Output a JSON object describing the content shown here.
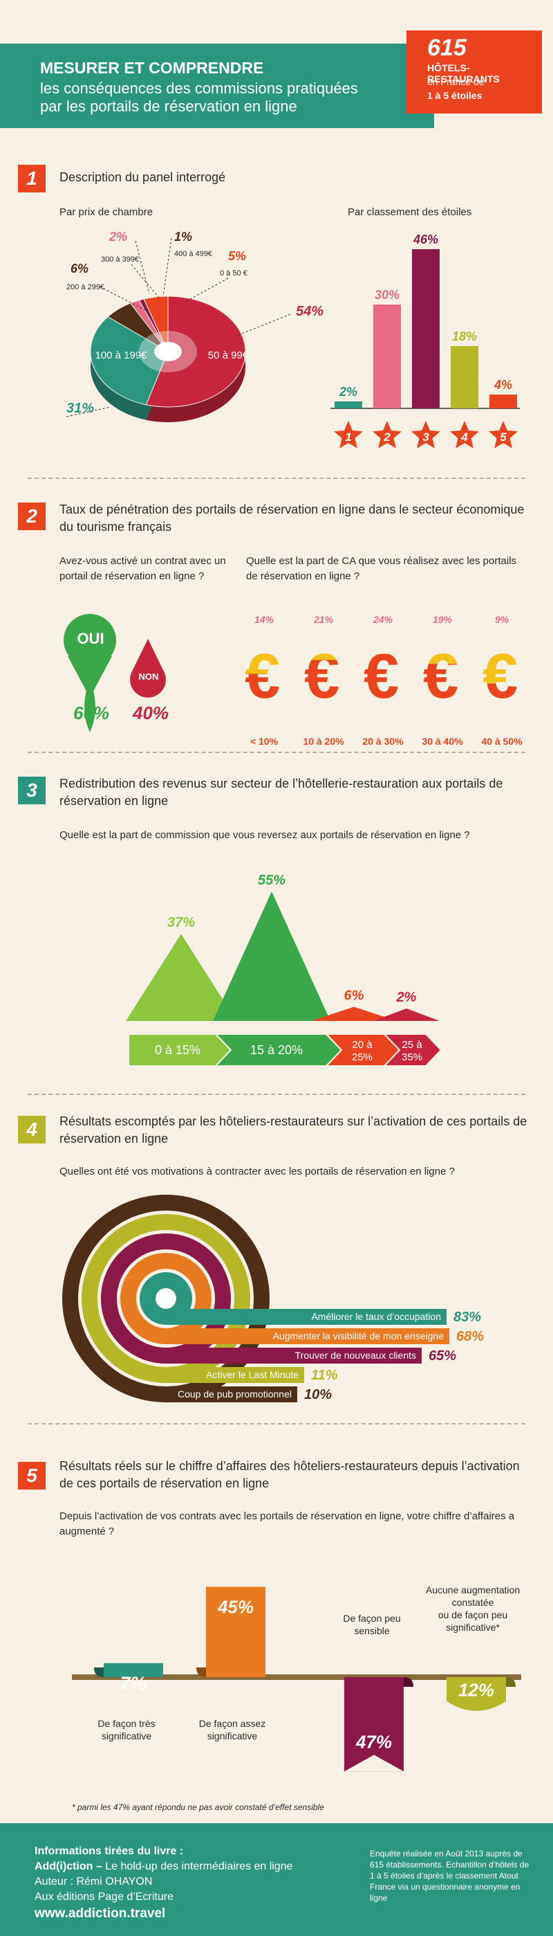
{
  "header": {
    "title": "MESURER ET COMPRENDRE",
    "subtitle_line1": "les conséquences des commissions pratiquées",
    "subtitle_line2": "par les portails de réservation en ligne"
  },
  "badge": {
    "number": "615",
    "line1": "HÔTELS-RESTAURANTS",
    "line2": "en France de",
    "line3": "1 à 5 étoiles"
  },
  "colors": {
    "teal": "#2b9680",
    "orange": "#e9441f",
    "red": "#c7253e",
    "pink": "#e86a86",
    "purple": "#8a1849",
    "olive": "#b7b629",
    "amber": "#e87a22",
    "green": "#3aa84a",
    "yellow": "#f3c11a",
    "brown": "#4f2e18"
  },
  "section1": {
    "num": "1",
    "title": "Description du panel interrogé",
    "pie_title": "Par prix de chambre",
    "bar_title": "Par classement des étoiles"
  },
  "section2": {
    "num": "2",
    "title": "Taux de pénétration des portails de réservation en ligne dans le secteur économique du tourisme français",
    "q_left": "Avez-vous activé un contrat avec un portail de réservation en ligne ?",
    "q_right": "Quelle est la part de CA que vous réalisez avec les portails de réservation en ligne ?",
    "oui": "OUI",
    "non": "NON",
    "oui_pct": "60%",
    "non_pct": "40%"
  },
  "section3": {
    "num": "3",
    "title": "Redistribution des revenus sur secteur de l’hôtellerie-restauration aux portails de réservation en ligne",
    "question": "Quelle est la part de commission que vous reversez aux portails de réservation en ligne ?"
  },
  "section4": {
    "num": "4",
    "title": "Résultats escomptés par les hôteliers-restaurateurs sur l’activation de ces portails de réservation en ligne",
    "question": "Quelles ont été vos motivations à contracter avec les portails de réservation en ligne ?"
  },
  "section5": {
    "num": "5",
    "title": "Résultats réels sur le chiffre d’affaires des hôteliers-restaurateurs depuis l’activation de ces portails de réservation en ligne",
    "question": "Depuis l’activation de vos contrats avec les portails de réservation en ligne, votre chiffre d’affaires a augmenté ?",
    "footnote": "* parmi les 47% ayant répondu ne pas avoir constaté d’effet sensible"
  },
  "footer": {
    "line1": "Informations tirées du livre :",
    "line2_bold": "Add(i)ction –",
    "line2_rest": " Le hold-up des intermédiaires en ligne",
    "line3": "Auteur : Rémi OHAYON",
    "line4": "Aux éditions Page d’Ecriture",
    "line5": "www.addiction.travel",
    "note": "Enquête réalisée en Août 2013 auprès de 615 établissements. Echantillon d’hôtels de 1 à 5 étoiles d’après le classement Atout France via un questionnaire anonyme en ligne"
  },
  "chart_data": [
    {
      "type": "pie",
      "title": "Par prix de chambre",
      "categories": [
        "50 à 99€",
        "100 à 199€",
        "200 à 299€",
        "300 à 399€",
        "400 à 499€",
        "0 à 50 €"
      ],
      "values": [
        54,
        31,
        6,
        2,
        1,
        5
      ],
      "labels": [
        "54%",
        "31%",
        "6%",
        "2%",
        "1%",
        "5%"
      ],
      "colors": [
        "#c7253e",
        "#2b9680",
        "#4f2e18",
        "#e86a86",
        "#8a1849",
        "#e9441f"
      ]
    },
    {
      "type": "bar",
      "title": "Par classement des étoiles",
      "categories": [
        "1",
        "2",
        "3",
        "4",
        "5"
      ],
      "values": [
        2,
        30,
        46,
        18,
        4
      ],
      "labels": [
        "2%",
        "30%",
        "46%",
        "18%",
        "4%"
      ],
      "colors": [
        "#2b9680",
        "#e86a86",
        "#8a1849",
        "#b7b629",
        "#e9441f"
      ]
    },
    {
      "type": "bar",
      "title": "Quelle est la part de CA que vous réalisez avec les portails de réservation en ligne ?",
      "categories": [
        "< 10%",
        "10 à 20%",
        "20 à 30%",
        "30 à 40%",
        "40 à 50%"
      ],
      "values": [
        14,
        21,
        24,
        19,
        9
      ],
      "labels": [
        "14%",
        "21%",
        "24%",
        "19%",
        "9%"
      ]
    },
    {
      "type": "area",
      "title": "Quelle est la part de commission que vous reversez aux portails de réservation en ligne ?",
      "categories": [
        "0 à 15%",
        "15 à 20%",
        "20 à 25%",
        "25 à 35%"
      ],
      "values": [
        37,
        55,
        6,
        2
      ],
      "labels": [
        "37%",
        "55%",
        "6%",
        "2%"
      ],
      "colors": [
        "#8cc63f",
        "#3aa84a",
        "#e9441f",
        "#c7253e"
      ]
    },
    {
      "type": "bar",
      "title": "Quelles ont été vos motivations à contracter avec les portails de réservation en ligne ?",
      "categories": [
        "Améliorer le taux d’occupation",
        "Augmenter la visibilité de mon enseigne",
        "Trouver de nouveaux clients",
        "Activer le Last Minute",
        "Coup de pub promotionnel"
      ],
      "values": [
        83,
        68,
        65,
        11,
        10
      ],
      "labels": [
        "83%",
        "68%",
        "65%",
        "11%",
        "10%"
      ],
      "colors": [
        "#2b9680",
        "#e87a22",
        "#8a1849",
        "#b7b629",
        "#4f2e18"
      ]
    },
    {
      "type": "bar",
      "title": "Depuis l’activation de vos contrats avec les portails de réservation en ligne, votre chiffre d’affaires a augmenté ?",
      "categories": [
        "De façon très significative",
        "De façon assez significative",
        "De façon peu sensible",
        "Aucune augmentation constatée ou de façon peu significative*"
      ],
      "values": [
        7,
        45,
        47,
        12
      ],
      "labels": [
        "7%",
        "45%",
        "47%",
        "12%"
      ],
      "colors": [
        "#2b9680",
        "#e87a22",
        "#8a1849",
        "#b7b629"
      ]
    }
  ]
}
